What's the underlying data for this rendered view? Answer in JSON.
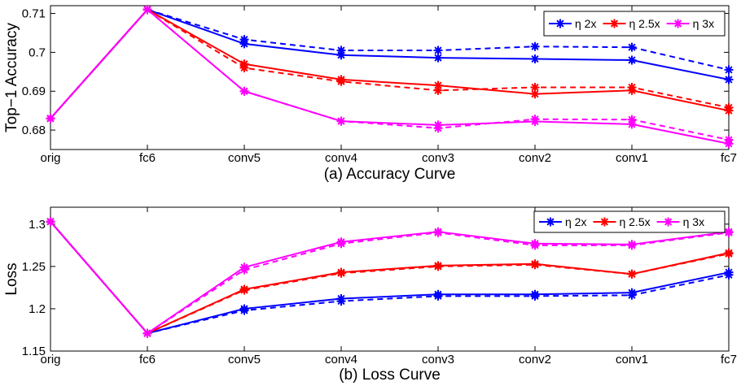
{
  "chart_data": [
    {
      "type": "line",
      "title": "(a) Accuracy Curve",
      "ylabel": "Top−1 Accuracy",
      "xlabel": "",
      "categories": [
        "orig",
        "fc6",
        "conv5",
        "conv4",
        "conv3",
        "conv2",
        "conv1",
        "fc7"
      ],
      "ylim": [
        0.675,
        0.712
      ],
      "yticks": [
        0.68,
        0.69,
        0.7,
        0.71
      ],
      "ytick_labels": [
        "0.68",
        "0.69",
        "0.7",
        "0.71"
      ],
      "grid": false,
      "legend": "top-right",
      "series": [
        {
          "name": "η 2x",
          "color": "#0000ff",
          "style": "solid",
          "values": [
            0.683,
            0.711,
            0.7022,
            0.6993,
            0.6986,
            0.6983,
            0.698,
            0.693
          ]
        },
        {
          "name": "",
          "color": "#0000ff",
          "style": "dashed",
          "values": [
            0.683,
            0.711,
            0.7033,
            0.7005,
            0.7005,
            0.7015,
            0.7013,
            0.6955
          ]
        },
        {
          "name": "η 2.5x",
          "color": "#ff0000",
          "style": "solid",
          "values": [
            0.683,
            0.711,
            0.697,
            0.693,
            0.6915,
            0.6893,
            0.6902,
            0.685
          ]
        },
        {
          "name": "",
          "color": "#ff0000",
          "style": "dashed",
          "values": [
            0.683,
            0.711,
            0.696,
            0.6925,
            0.6902,
            0.691,
            0.691,
            0.6858
          ]
        },
        {
          "name": "η 3x",
          "color": "#ff00ff",
          "style": "solid",
          "values": [
            0.683,
            0.711,
            0.69,
            0.6823,
            0.6813,
            0.6822,
            0.6815,
            0.6765
          ]
        },
        {
          "name": "",
          "color": "#ff00ff",
          "style": "dashed",
          "values": [
            0.683,
            0.711,
            0.69,
            0.6823,
            0.6805,
            0.6828,
            0.6827,
            0.6775
          ]
        }
      ]
    },
    {
      "type": "line",
      "title": "(b) Loss Curve",
      "ylabel": "Loss",
      "xlabel": "",
      "categories": [
        "orig",
        "fc6",
        "conv5",
        "conv4",
        "conv3",
        "conv2",
        "conv1",
        "fc7"
      ],
      "ylim": [
        1.15,
        1.32
      ],
      "yticks": [
        1.15,
        1.2,
        1.25,
        1.3
      ],
      "ytick_labels": [
        "1.15",
        "1.2",
        "1.25",
        "1.3"
      ],
      "grid": false,
      "legend": "top-right",
      "series": [
        {
          "name": "η 2x",
          "color": "#0000ff",
          "style": "solid",
          "values": [
            1.303,
            1.171,
            1.2,
            1.212,
            1.217,
            1.217,
            1.219,
            1.243
          ]
        },
        {
          "name": "",
          "color": "#0000ff",
          "style": "dashed",
          "values": [
            1.303,
            1.171,
            1.198,
            1.209,
            1.215,
            1.215,
            1.216,
            1.24
          ]
        },
        {
          "name": "η 2.5x",
          "color": "#ff0000",
          "style": "solid",
          "values": [
            1.303,
            1.171,
            1.223,
            1.243,
            1.251,
            1.253,
            1.241,
            1.266
          ]
        },
        {
          "name": "",
          "color": "#ff0000",
          "style": "dashed",
          "values": [
            1.303,
            1.171,
            1.222,
            1.242,
            1.25,
            1.252,
            1.241,
            1.265
          ]
        },
        {
          "name": "η 3x",
          "color": "#ff00ff",
          "style": "solid",
          "values": [
            1.303,
            1.171,
            1.249,
            1.279,
            1.291,
            1.277,
            1.276,
            1.291
          ]
        },
        {
          "name": "",
          "color": "#ff00ff",
          "style": "dashed",
          "values": [
            1.303,
            1.171,
            1.246,
            1.277,
            1.29,
            1.275,
            1.275,
            1.29
          ]
        }
      ]
    }
  ]
}
